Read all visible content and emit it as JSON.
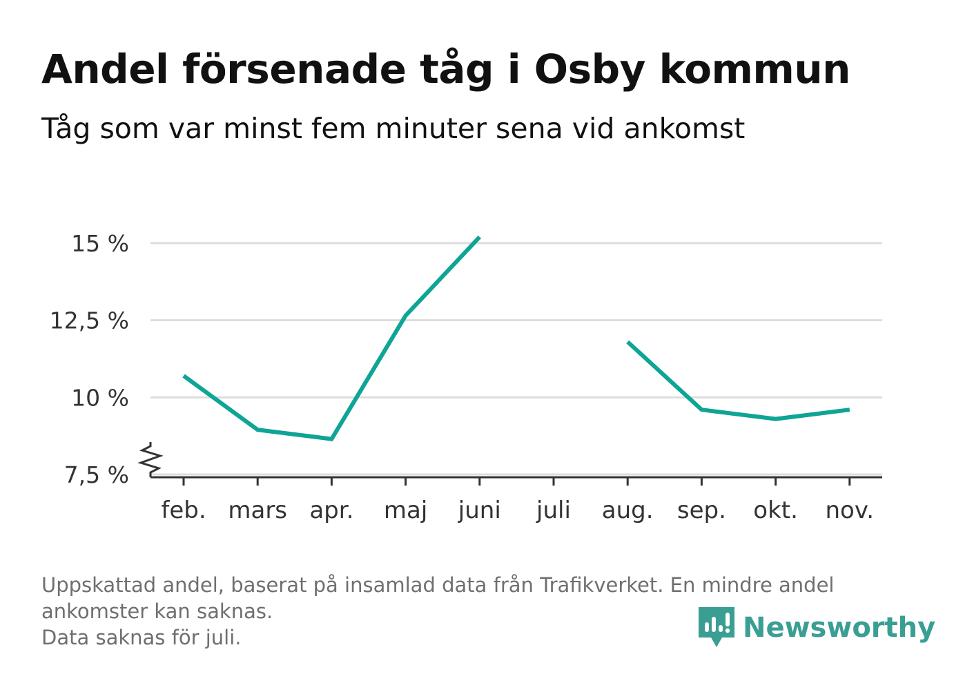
{
  "title": "Andel försenade tåg i Osby kommun",
  "subtitle": "Tåg som var minst fem minuter sena vid ankomst",
  "footnote": {
    "line1": "Uppskattad andel, baserat på insamlad data från Trafikverket. En mindre andel",
    "line2": "ankomster kan saknas.",
    "line3": "Data saknas för juli."
  },
  "brand": {
    "name": "Newsworthy",
    "icon": "newsworthy-logo-icon",
    "color": "#3a9e93"
  },
  "chart_data": {
    "type": "line",
    "categories": [
      "feb.",
      "mars",
      "apr.",
      "maj",
      "juni",
      "juli",
      "aug.",
      "sep.",
      "okt.",
      "nov."
    ],
    "series": [
      {
        "values": [
          10.7,
          8.95,
          8.65,
          12.65,
          15.2,
          null,
          11.8,
          9.6,
          9.3,
          9.6
        ],
        "color": "#0ea496"
      }
    ],
    "yticks": [
      7.5,
      10,
      12.5,
      15
    ],
    "ytick_labels": [
      "7,5 %",
      "10 %",
      "12,5 %",
      "15 %"
    ],
    "ylim": [
      7.5,
      15
    ],
    "axis_break": true,
    "grid": true,
    "xlabel": "",
    "ylabel": ""
  }
}
